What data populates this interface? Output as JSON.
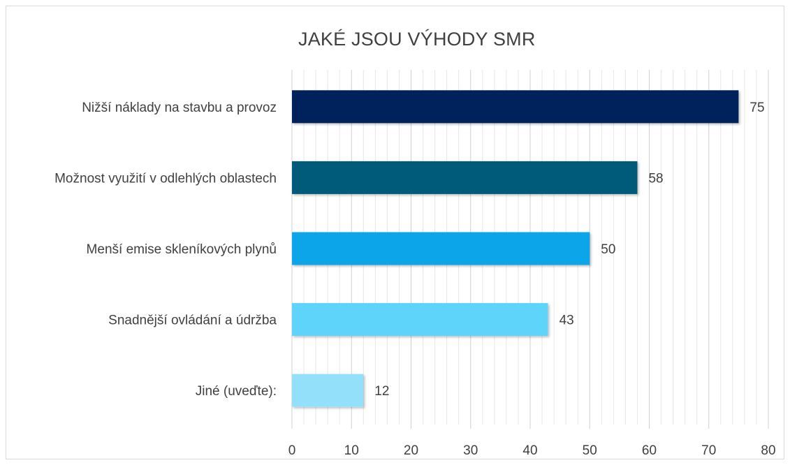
{
  "chart_data": {
    "type": "bar",
    "orientation": "horizontal",
    "title": "JAKÉ JSOU VÝHODY SMR",
    "xlabel": "",
    "ylabel": "",
    "xlim": [
      0,
      80
    ],
    "x_ticks": [
      0,
      10,
      20,
      30,
      40,
      50,
      60,
      70,
      80
    ],
    "grid": "vertical-minor",
    "legend": "none",
    "categories": [
      "Nižší náklady na stavbu a provoz",
      "Možnost využití v odlehlých oblastech",
      "Menší emise skleníkových plynů",
      "Snadnější ovládání a údržba",
      "Jiné (uveďte):"
    ],
    "values": [
      75,
      58,
      50,
      43,
      12
    ],
    "colors": [
      "#00205b",
      "#005a7a",
      "#0ea5e9",
      "#5fd4fb",
      "#93e0fb"
    ]
  }
}
